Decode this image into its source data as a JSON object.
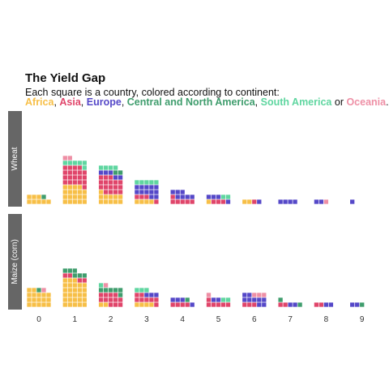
{
  "chart_data": {
    "type": "waffle",
    "title": "The Yield Gap",
    "subtitle_prefix": "Each square is a country, colored according to continent:",
    "continents": [
      {
        "key": "africa",
        "name": "Africa",
        "color": "#f7bf47"
      },
      {
        "key": "asia",
        "name": "Asia",
        "color": "#e0456a"
      },
      {
        "key": "europe",
        "name": "Europe",
        "color": "#5548c8"
      },
      {
        "key": "cna",
        "name": "Central and North America",
        "color": "#3f9d6d"
      },
      {
        "key": "sa",
        "name": "South America",
        "color": "#5fd6a0"
      },
      {
        "key": "oceania",
        "name": "Oceania",
        "color": "#ee8fa5"
      }
    ],
    "legend_separator": ",",
    "legend_or": "or",
    "legend_end": ".",
    "x_ticks": [
      "0",
      "1",
      "2",
      "3",
      "4",
      "5",
      "6",
      "7",
      "8",
      "9"
    ],
    "facets": [
      {
        "label": "Wheat",
        "bins": [
          {
            "x": 0,
            "counts": {
              "africa": 8,
              "asia": 0,
              "europe": 0,
              "cna": 1,
              "sa": 0,
              "oceania": 0
            }
          },
          {
            "x": 1,
            "counts": {
              "africa": 19,
              "asia": 20,
              "europe": 0,
              "cna": 0,
              "sa": 6,
              "oceania": 2
            }
          },
          {
            "x": 2,
            "counts": {
              "africa": 11,
              "asia": 17,
              "europe": 5,
              "cna": 2,
              "sa": 4,
              "oceania": 0
            }
          },
          {
            "x": 3,
            "counts": {
              "africa": 4,
              "asia": 4,
              "europe": 12,
              "cna": 0,
              "sa": 5,
              "oceania": 0
            }
          },
          {
            "x": 4,
            "counts": {
              "africa": 0,
              "asia": 6,
              "europe": 7,
              "cna": 0,
              "sa": 0,
              "oceania": 0
            }
          },
          {
            "x": 5,
            "counts": {
              "africa": 1,
              "asia": 3,
              "europe": 4,
              "cna": 0,
              "sa": 2,
              "oceania": 0
            }
          },
          {
            "x": 6,
            "counts": {
              "africa": 2,
              "asia": 1,
              "europe": 1,
              "cna": 0,
              "sa": 0,
              "oceania": 0
            }
          },
          {
            "x": 7,
            "counts": {
              "africa": 0,
              "asia": 0,
              "europe": 4,
              "cna": 0,
              "sa": 0,
              "oceania": 0
            }
          },
          {
            "x": 8,
            "counts": {
              "africa": 0,
              "asia": 0,
              "europe": 2,
              "cna": 0,
              "sa": 0,
              "oceania": 1
            }
          },
          {
            "x": 9,
            "counts": {
              "africa": 0,
              "asia": 0,
              "europe": 1,
              "cna": 0,
              "sa": 0,
              "oceania": 0
            }
          }
        ]
      },
      {
        "label": "Maize (corn)",
        "bins": [
          {
            "x": 0,
            "counts": {
              "africa": 17,
              "asia": 0,
              "europe": 0,
              "cna": 1,
              "sa": 0,
              "oceania": 1
            }
          },
          {
            "x": 1,
            "counts": {
              "africa": 28,
              "asia": 4,
              "europe": 0,
              "cna": 6,
              "sa": 0,
              "oceania": 0
            }
          },
          {
            "x": 2,
            "counts": {
              "africa": 2,
              "asia": 12,
              "europe": 0,
              "cna": 6,
              "sa": 1,
              "oceania": 1
            }
          },
          {
            "x": 3,
            "counts": {
              "africa": 4,
              "asia": 8,
              "europe": 3,
              "cna": 0,
              "sa": 3,
              "oceania": 0
            }
          },
          {
            "x": 4,
            "counts": {
              "africa": 0,
              "asia": 4,
              "europe": 4,
              "cna": 1,
              "sa": 0,
              "oceania": 0
            }
          },
          {
            "x": 5,
            "counts": {
              "africa": 0,
              "asia": 6,
              "europe": 2,
              "cna": 0,
              "sa": 2,
              "oceania": 1
            }
          },
          {
            "x": 6,
            "counts": {
              "africa": 0,
              "asia": 3,
              "europe": 9,
              "cna": 0,
              "sa": 0,
              "oceania": 3
            }
          },
          {
            "x": 7,
            "counts": {
              "africa": 0,
              "asia": 2,
              "europe": 2,
              "cna": 2,
              "sa": 0,
              "oceania": 0
            }
          },
          {
            "x": 8,
            "counts": {
              "africa": 0,
              "asia": 2,
              "europe": 2,
              "cna": 0,
              "sa": 0,
              "oceania": 0
            }
          },
          {
            "x": 9,
            "counts": {
              "africa": 0,
              "asia": 0,
              "europe": 2,
              "cna": 1,
              "sa": 0,
              "oceania": 0
            }
          }
        ]
      }
    ]
  }
}
